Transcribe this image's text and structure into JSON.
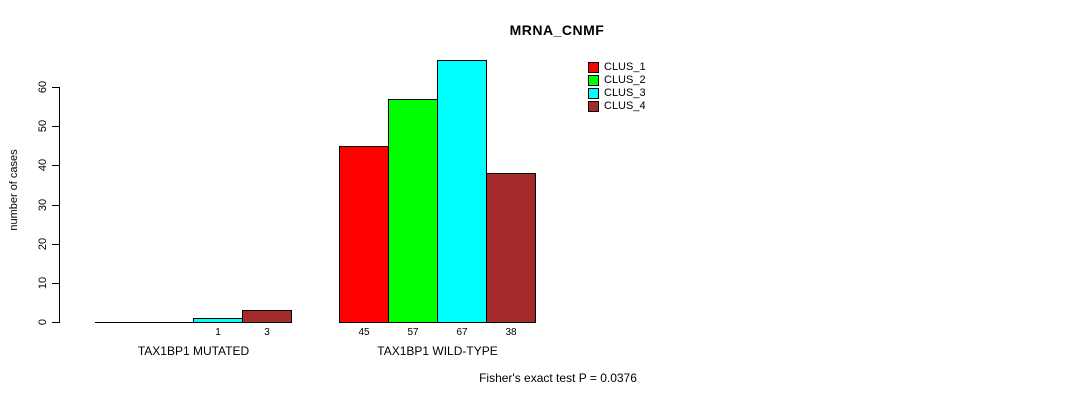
{
  "chart_data": {
    "type": "bar",
    "title": "MRNA_CNMF",
    "xlabel": "",
    "ylabel": "number of cases",
    "ylim": [
      0,
      67
    ],
    "y_ticks": [
      0,
      10,
      20,
      30,
      40,
      50,
      60
    ],
    "grid": false,
    "legend_position": "top-right",
    "categories": [
      "TAX1BP1 MUTATED",
      "TAX1BP1 WILD-TYPE"
    ],
    "series": [
      {
        "name": "CLUS_1",
        "color": "#ff0000",
        "values": [
          0,
          45
        ]
      },
      {
        "name": "CLUS_2",
        "color": "#00ff00",
        "values": [
          0,
          57
        ]
      },
      {
        "name": "CLUS_3",
        "color": "#00ffff",
        "values": [
          1,
          67
        ]
      },
      {
        "name": "CLUS_4",
        "color": "#a52a2a",
        "values": [
          3,
          38
        ]
      }
    ],
    "bar_value_labels": [
      "",
      "",
      "1",
      "3",
      "45",
      "57",
      "67",
      "38"
    ],
    "annotation": "Fisher's exact test P = 0.0376"
  }
}
